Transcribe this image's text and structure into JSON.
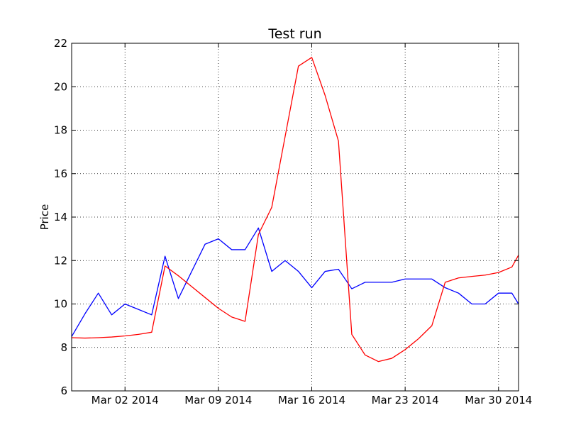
{
  "chart_data": {
    "type": "line",
    "title": "Test run",
    "xlabel": "",
    "ylabel": "Price",
    "x_axis": {
      "type": "date",
      "range": [
        "2014-02-26",
        "2014-03-31"
      ],
      "ticks": [
        {
          "date": "2014-03-02",
          "label": "Mar 02 2014"
        },
        {
          "date": "2014-03-09",
          "label": "Mar 09 2014"
        },
        {
          "date": "2014-03-16",
          "label": "Mar 16 2014"
        },
        {
          "date": "2014-03-23",
          "label": "Mar 23 2014"
        },
        {
          "date": "2014-03-30",
          "label": "Mar 30 2014"
        }
      ]
    },
    "ylim": [
      6,
      22
    ],
    "yticks": [
      6,
      8,
      10,
      12,
      14,
      16,
      18,
      20,
      22
    ],
    "grid": true,
    "legend": "none",
    "series": [
      {
        "color": "#0000ff",
        "points": [
          [
            "2014-02-26",
            8.5
          ],
          [
            "2014-02-27",
            9.55
          ],
          [
            "2014-02-28",
            10.5
          ],
          [
            "2014-03-01",
            9.5
          ],
          [
            "2014-03-02",
            10.0
          ],
          [
            "2014-03-03",
            9.75
          ],
          [
            "2014-03-04",
            9.5
          ],
          [
            "2014-03-05",
            12.2
          ],
          [
            "2014-03-06",
            10.25
          ],
          [
            "2014-03-07",
            11.5
          ],
          [
            "2014-03-08",
            12.75
          ],
          [
            "2014-03-09",
            13.0
          ],
          [
            "2014-03-10",
            12.5
          ],
          [
            "2014-03-11",
            12.5
          ],
          [
            "2014-03-12",
            13.5
          ],
          [
            "2014-03-13",
            11.5
          ],
          [
            "2014-03-14",
            12.0
          ],
          [
            "2014-03-15",
            11.5
          ],
          [
            "2014-03-16",
            10.75
          ],
          [
            "2014-03-17",
            11.5
          ],
          [
            "2014-03-18",
            11.6
          ],
          [
            "2014-03-19",
            10.7
          ],
          [
            "2014-03-20",
            11.0
          ],
          [
            "2014-03-21",
            11.0
          ],
          [
            "2014-03-22",
            11.0
          ],
          [
            "2014-03-23",
            11.15
          ],
          [
            "2014-03-24",
            11.15
          ],
          [
            "2014-03-25",
            11.15
          ],
          [
            "2014-03-26",
            10.75
          ],
          [
            "2014-03-27",
            10.5
          ],
          [
            "2014-03-28",
            10.0
          ],
          [
            "2014-03-29",
            10.0
          ],
          [
            "2014-03-30",
            10.5
          ],
          [
            "2014-03-31",
            10.5
          ],
          [
            "2014-03-31T12:00",
            10.0
          ]
        ]
      },
      {
        "color": "#ff0000",
        "points": [
          [
            "2014-02-26",
            8.45
          ],
          [
            "2014-02-27",
            8.43
          ],
          [
            "2014-02-28",
            8.45
          ],
          [
            "2014-03-01",
            8.48
          ],
          [
            "2014-03-02",
            8.53
          ],
          [
            "2014-03-03",
            8.6
          ],
          [
            "2014-03-04",
            8.7
          ],
          [
            "2014-03-05",
            11.75
          ],
          [
            "2014-03-06",
            11.3
          ],
          [
            "2014-03-07",
            10.8
          ],
          [
            "2014-03-08",
            10.3
          ],
          [
            "2014-03-09",
            9.8
          ],
          [
            "2014-03-10",
            9.4
          ],
          [
            "2014-03-11",
            9.2
          ],
          [
            "2014-03-12",
            13.2
          ],
          [
            "2014-03-13",
            14.45
          ],
          [
            "2014-03-14",
            17.7
          ],
          [
            "2014-03-15",
            20.95
          ],
          [
            "2014-03-16",
            21.35
          ],
          [
            "2014-03-17",
            19.6
          ],
          [
            "2014-03-18",
            17.5
          ],
          [
            "2014-03-19",
            8.6
          ],
          [
            "2014-03-20",
            7.65
          ],
          [
            "2014-03-21",
            7.35
          ],
          [
            "2014-03-22",
            7.5
          ],
          [
            "2014-03-23",
            7.9
          ],
          [
            "2014-03-24",
            8.4
          ],
          [
            "2014-03-25",
            9.0
          ],
          [
            "2014-03-26",
            11.0
          ],
          [
            "2014-03-27",
            11.2
          ],
          [
            "2014-03-28",
            11.27
          ],
          [
            "2014-03-29",
            11.33
          ],
          [
            "2014-03-30",
            11.45
          ],
          [
            "2014-03-31",
            11.7
          ],
          [
            "2014-03-31T12:00",
            12.25
          ]
        ]
      }
    ]
  }
}
